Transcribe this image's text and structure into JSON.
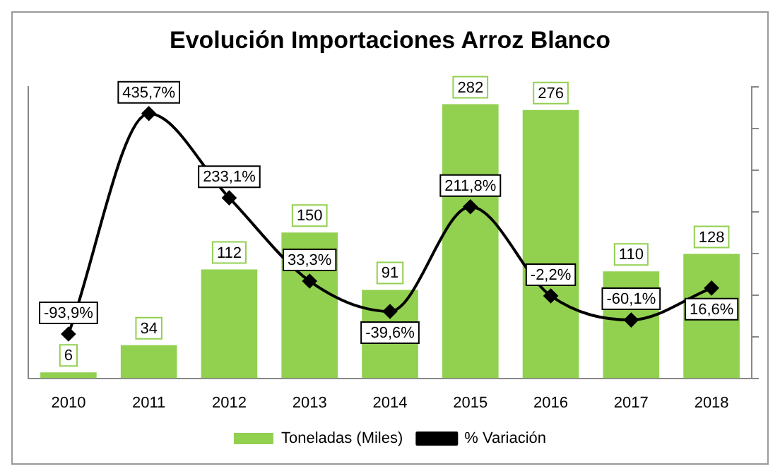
{
  "chart_data": {
    "type": "bar",
    "title": "Evolución Importaciones Arroz Blanco",
    "categories": [
      "2010",
      "2011",
      "2012",
      "2013",
      "2014",
      "2015",
      "2016",
      "2017",
      "2018"
    ],
    "series": [
      {
        "name": "Toneladas (Miles)",
        "color": "#92d050",
        "values": [
          6,
          34,
          112,
          150,
          91,
          282,
          276,
          110,
          128
        ],
        "value_labels": [
          "6",
          "34",
          "112",
          "150",
          "91",
          "282",
          "276",
          "110",
          "128"
        ]
      },
      {
        "name": "% Variación",
        "type": "line",
        "axis": "y2",
        "color": "#000000",
        "marker": "diamond",
        "values": [
          -93.9,
          435.7,
          233.1,
          33.3,
          -39.6,
          211.8,
          -2.2,
          -60.1,
          16.6
        ],
        "value_labels": [
          "-93,9%",
          "435,7%",
          "233,1%",
          "33,3%",
          "-39,6%",
          "211,8%",
          "-2,2%",
          "-60,1%",
          "16,6%"
        ]
      }
    ],
    "legend": "bottom",
    "tick_labels": "x"
  }
}
